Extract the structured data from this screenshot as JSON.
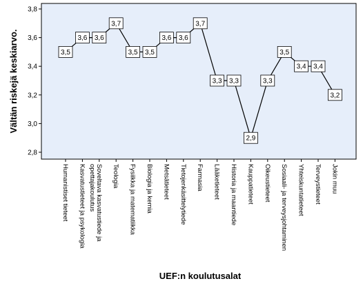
{
  "chart_data": {
    "type": "line",
    "xlabel": "UEF:n koulutusalat",
    "ylabel": "Vältän riskejä keskiarvo.",
    "ylim": [
      2.8,
      3.8
    ],
    "yticks": [
      "2,8",
      "3,0",
      "3,2",
      "3,4",
      "3,6",
      "3,8"
    ],
    "categories": [
      "Humanistiset tieteet",
      "Kasvatustieteet ja psykologia",
      "Soveltava kasvatustiede ja opettajakoulutus",
      "Teologia",
      "Fysiikka ja matematiikka",
      "Biologia ja kemia",
      "Metsätieteet",
      "Tietojenkäsittelytiede",
      "Farmasia",
      "Lääketieteet",
      "Historia ja maantiede",
      "Kauppatieteet",
      "Oikeustieteet",
      "Sosiaali- ja terveysjohtaminen",
      "Yhteiskuntatieteet",
      "Terveystieteet",
      "Jokin muu"
    ],
    "values": [
      3.5,
      3.6,
      3.6,
      3.7,
      3.5,
      3.5,
      3.6,
      3.6,
      3.7,
      3.3,
      3.3,
      2.9,
      3.3,
      3.5,
      3.4,
      3.4,
      3.2
    ],
    "value_labels": [
      "3,5",
      "3,6",
      "3,6",
      "3,7",
      "3,5",
      "3,5",
      "3,6",
      "3,6",
      "3,7",
      "3,3",
      "3,3",
      "2,9",
      "3,3",
      "3,5",
      "3,4",
      "3,4",
      "3,2"
    ],
    "grid": false,
    "colors": {
      "plot_background": "#e6eefa",
      "line": "#000000",
      "label_box": "#ffffff"
    }
  }
}
